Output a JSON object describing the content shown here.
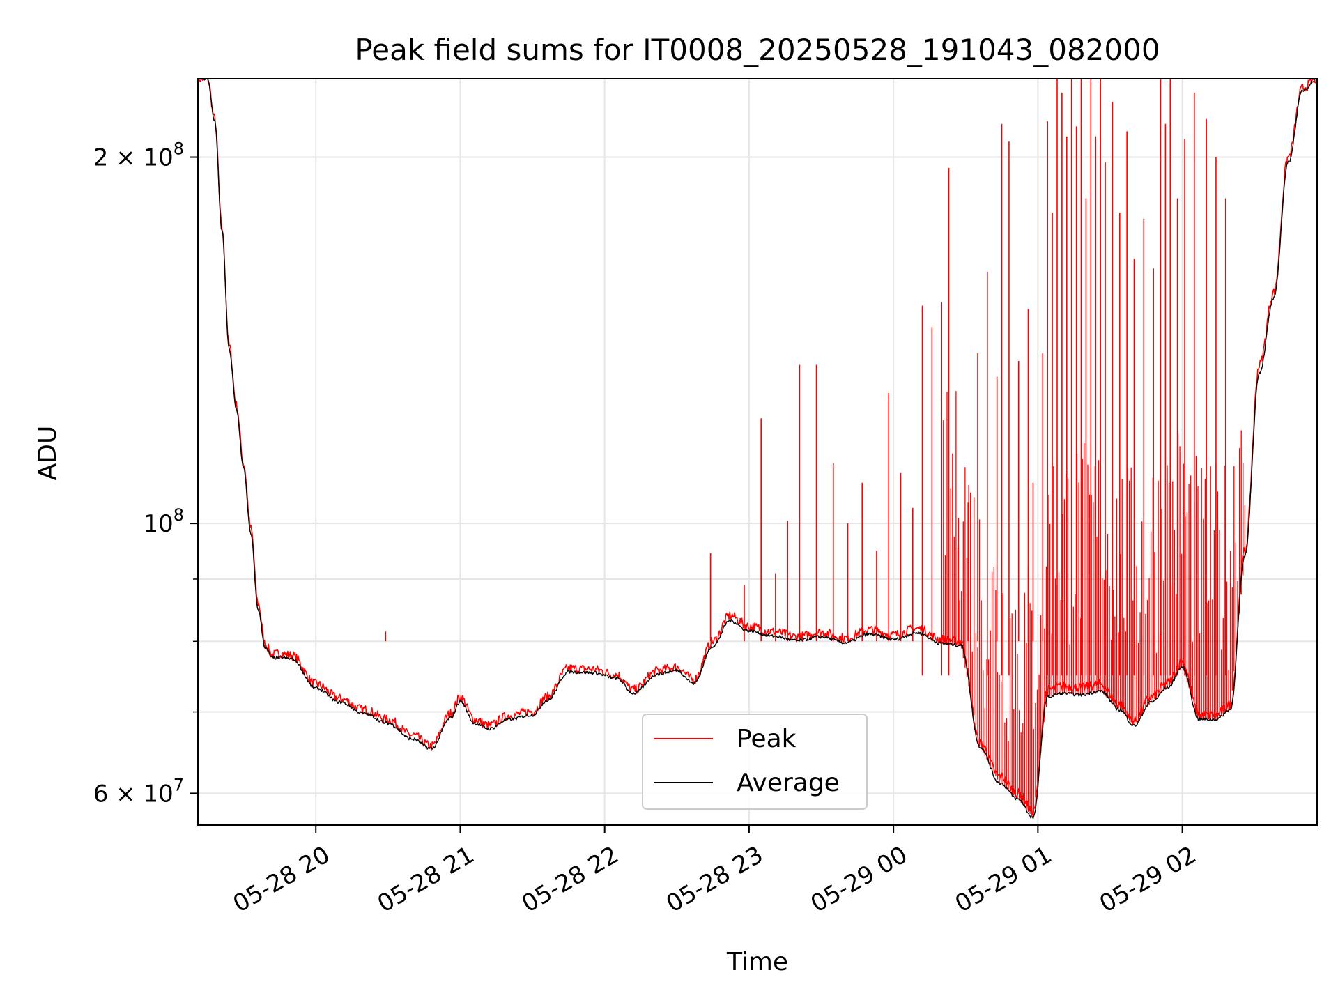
{
  "chart_data": {
    "type": "line",
    "title": "Peak field sums for IT0008_20250528_191043_082000",
    "xlabel": "Time",
    "ylabel": "ADU",
    "yscale": "log",
    "xlim": [
      "2025-05-28 19:11",
      "2025-05-29 02:56"
    ],
    "ylim": [
      56500000,
      232000000
    ],
    "grid": true,
    "legend_position": "lower-center",
    "x_ticks": [
      "05-28 20",
      "05-28 21",
      "05-28 22",
      "05-28 23",
      "05-29 00",
      "05-29 01",
      "05-29 02"
    ],
    "y_ticks": [
      {
        "value": 60000000,
        "mantissa": "6",
        "exponent": "7"
      },
      {
        "value": 100000000,
        "mantissa": "",
        "exponent": "8"
      },
      {
        "value": 200000000,
        "mantissa": "2",
        "exponent": "8"
      }
    ],
    "series": [
      {
        "name": "Peak",
        "color": "#ff0000",
        "x": [
          "2025-05-28 19:11",
          "2025-05-28 19:15",
          "2025-05-28 19:18",
          "2025-05-28 19:21",
          "2025-05-28 19:24",
          "2025-05-28 19:27",
          "2025-05-28 19:30",
          "2025-05-28 19:33",
          "2025-05-28 19:36",
          "2025-05-28 19:39",
          "2025-05-28 19:42",
          "2025-05-28 19:45",
          "2025-05-28 19:50",
          "2025-05-28 20:00",
          "2025-05-28 20:10",
          "2025-05-28 20:20",
          "2025-05-28 20:30",
          "2025-05-28 20:40",
          "2025-05-28 20:48",
          "2025-05-28 20:56",
          "2025-05-28 21:00",
          "2025-05-28 21:06",
          "2025-05-28 21:12",
          "2025-05-28 21:20",
          "2025-05-28 21:30",
          "2025-05-28 21:36",
          "2025-05-28 21:45",
          "2025-05-28 21:55",
          "2025-05-28 22:05",
          "2025-05-28 22:12",
          "2025-05-28 22:22",
          "2025-05-28 22:30",
          "2025-05-28 22:37",
          "2025-05-28 22:45",
          "2025-05-28 22:52",
          "2025-05-28 23:00",
          "2025-05-28 23:10",
          "2025-05-28 23:20",
          "2025-05-28 23:30",
          "2025-05-28 23:40",
          "2025-05-28 23:50",
          "2025-05-29 00:00",
          "2025-05-29 00:10",
          "2025-05-29 00:20",
          "2025-05-29 00:28",
          "2025-05-29 00:36",
          "2025-05-29 00:44",
          "2025-05-29 00:52",
          "2025-05-29 00:58",
          "2025-05-29 01:04",
          "2025-05-29 01:10",
          "2025-05-29 01:18",
          "2025-05-29 01:26",
          "2025-05-29 01:34",
          "2025-05-29 01:40",
          "2025-05-29 01:47",
          "2025-05-29 01:54",
          "2025-05-29 02:00",
          "2025-05-29 02:07",
          "2025-05-29 02:14",
          "2025-05-29 02:20",
          "2025-05-29 02:26",
          "2025-05-29 02:32",
          "2025-05-29 02:38",
          "2025-05-29 02:44",
          "2025-05-29 02:50",
          "2025-05-29 02:56"
        ],
        "y": [
          232000000,
          232000000,
          215000000,
          175000000,
          140000000,
          125000000,
          112000000,
          99000000,
          86000000,
          79500000,
          78000000,
          78200000,
          77900000,
          73800000,
          71800000,
          70300000,
          69000000,
          67000000,
          65600000,
          69800000,
          72000000,
          69000000,
          68200000,
          69500000,
          70100000,
          72000000,
          76000000,
          75900000,
          75100000,
          73000000,
          75700000,
          76200000,
          74400000,
          80000000,
          84000000,
          82300000,
          81500000,
          80700000,
          81400000,
          80500000,
          81800000,
          81000000,
          82000000,
          80300000,
          80000000,
          66000000,
          62000000,
          60000000,
          58000000,
          73000000,
          73500000,
          73300000,
          73800000,
          71000000,
          68800000,
          72000000,
          74000000,
          77000000,
          69600000,
          69600000,
          71000000,
          95000000,
          135000000,
          155000000,
          200000000,
          228000000,
          232000000
        ],
        "spikes": [
          [
            "2025-05-28 20:29",
            81500000
          ],
          [
            "2025-05-28 22:44",
            94500000
          ],
          [
            "2025-05-28 22:58",
            89000000
          ],
          [
            "2025-05-28 23:05",
            122000000
          ],
          [
            "2025-05-28 23:11",
            91000000
          ],
          [
            "2025-05-28 23:16",
            100500000
          ],
          [
            "2025-05-28 23:21",
            135000000
          ],
          [
            "2025-05-28 23:28",
            135000000
          ],
          [
            "2025-05-28 23:35",
            112000000
          ],
          [
            "2025-05-28 23:41",
            100000000
          ],
          [
            "2025-05-28 23:47",
            108000000
          ],
          [
            "2025-05-28 23:53",
            95000000
          ],
          [
            "2025-05-28 23:58",
            128000000
          ],
          [
            "2025-05-29 00:03",
            110000000
          ],
          [
            "2025-05-29 00:08",
            103000000
          ],
          [
            "2025-05-29 00:12",
            151000000
          ],
          [
            "2025-05-29 00:16",
            145000000
          ],
          [
            "2025-05-29 00:20",
            152000000
          ],
          [
            "2025-05-29 00:23",
            196000000
          ],
          [
            "2025-05-29 00:27",
            101000000
          ],
          [
            "2025-05-29 00:31",
            104000000
          ],
          [
            "2025-05-29 00:35",
            138000000
          ],
          [
            "2025-05-29 00:39",
            161000000
          ],
          [
            "2025-05-29 00:43",
            132000000
          ],
          [
            "2025-05-29 00:45",
            213000000
          ],
          [
            "2025-05-29 00:48",
            206000000
          ],
          [
            "2025-05-29 00:52",
            136000000
          ],
          [
            "2025-05-29 00:56",
            150000000
          ],
          [
            "2025-05-29 00:58",
            108000000
          ],
          [
            "2025-05-29 01:02",
            138000000
          ],
          [
            "2025-05-29 01:04",
            214000000
          ],
          [
            "2025-05-29 01:06",
            180000000
          ],
          [
            "2025-05-29 01:08",
            232000000
          ],
          [
            "2025-05-29 01:10",
            226000000
          ],
          [
            "2025-05-29 01:12",
            208000000
          ],
          [
            "2025-05-29 01:14",
            232000000
          ],
          [
            "2025-05-29 01:16",
            212000000
          ],
          [
            "2025-05-29 01:18",
            232000000
          ],
          [
            "2025-05-29 01:20",
            185000000
          ],
          [
            "2025-05-29 01:22",
            232000000
          ],
          [
            "2025-05-29 01:24",
            208000000
          ],
          [
            "2025-05-29 01:26",
            232000000
          ],
          [
            "2025-05-29 01:28",
            198000000
          ],
          [
            "2025-05-29 01:31",
            222000000
          ],
          [
            "2025-05-29 01:34",
            180000000
          ],
          [
            "2025-05-29 01:37",
            210000000
          ],
          [
            "2025-05-29 01:40",
            165000000
          ],
          [
            "2025-05-29 01:44",
            178000000
          ],
          [
            "2025-05-29 01:48",
            162000000
          ],
          [
            "2025-05-29 01:51",
            232000000
          ],
          [
            "2025-05-29 01:53",
            213000000
          ],
          [
            "2025-05-29 01:55",
            232000000
          ],
          [
            "2025-05-29 01:58",
            185000000
          ],
          [
            "2025-05-29 02:01",
            207000000
          ],
          [
            "2025-05-29 02:05",
            226000000
          ],
          [
            "2025-05-29 02:10",
            215000000
          ],
          [
            "2025-05-29 02:14",
            200000000
          ],
          [
            "2025-05-29 02:18",
            185000000
          ]
        ]
      },
      {
        "name": "Average",
        "color": "#000000",
        "x": [
          "2025-05-28 19:11",
          "2025-05-28 19:15",
          "2025-05-28 19:18",
          "2025-05-28 19:21",
          "2025-05-28 19:24",
          "2025-05-28 19:27",
          "2025-05-28 19:30",
          "2025-05-28 19:33",
          "2025-05-28 19:36",
          "2025-05-28 19:39",
          "2025-05-28 19:42",
          "2025-05-28 19:45",
          "2025-05-28 19:50",
          "2025-05-28 20:00",
          "2025-05-28 20:10",
          "2025-05-28 20:20",
          "2025-05-28 20:30",
          "2025-05-28 20:40",
          "2025-05-28 20:48",
          "2025-05-28 20:56",
          "2025-05-28 21:00",
          "2025-05-28 21:06",
          "2025-05-28 21:12",
          "2025-05-28 21:20",
          "2025-05-28 21:30",
          "2025-05-28 21:36",
          "2025-05-28 21:45",
          "2025-05-28 21:55",
          "2025-05-28 22:05",
          "2025-05-28 22:12",
          "2025-05-28 22:22",
          "2025-05-28 22:30",
          "2025-05-28 22:37",
          "2025-05-28 22:45",
          "2025-05-28 22:52",
          "2025-05-28 23:00",
          "2025-05-28 23:10",
          "2025-05-28 23:20",
          "2025-05-28 23:30",
          "2025-05-28 23:40",
          "2025-05-28 23:50",
          "2025-05-29 00:00",
          "2025-05-29 00:10",
          "2025-05-29 00:20",
          "2025-05-29 00:28",
          "2025-05-29 00:36",
          "2025-05-29 00:44",
          "2025-05-29 00:52",
          "2025-05-29 00:58",
          "2025-05-29 01:04",
          "2025-05-29 01:10",
          "2025-05-29 01:18",
          "2025-05-29 01:26",
          "2025-05-29 01:34",
          "2025-05-29 01:40",
          "2025-05-29 01:47",
          "2025-05-29 01:54",
          "2025-05-29 02:00",
          "2025-05-29 02:07",
          "2025-05-29 02:14",
          "2025-05-29 02:20",
          "2025-05-29 02:26",
          "2025-05-29 02:32",
          "2025-05-29 02:38",
          "2025-05-29 02:44",
          "2025-05-29 02:50",
          "2025-05-29 02:56"
        ],
        "y": [
          232000000,
          232000000,
          214000000,
          174000000,
          139000000,
          124000000,
          111000000,
          98000000,
          85000000,
          79000000,
          77500000,
          77600000,
          77400000,
          73200000,
          71300000,
          69800000,
          68500000,
          66500000,
          65300000,
          69200000,
          71400000,
          68500000,
          67800000,
          69000000,
          69600000,
          71500000,
          75500000,
          75400000,
          74600000,
          72500000,
          75200000,
          75700000,
          73900000,
          79300000,
          83200000,
          81600000,
          80800000,
          80100000,
          80700000,
          79800000,
          81100000,
          80300000,
          81300000,
          79700000,
          79400000,
          65500000,
          61200000,
          59300000,
          57300000,
          72000000,
          72500000,
          72300000,
          72800000,
          70300000,
          68200000,
          71300000,
          73300000,
          76200000,
          69000000,
          69000000,
          70300000,
          94000000,
          133000000,
          153000000,
          198000000,
          227000000,
          232000000
        ]
      }
    ]
  }
}
